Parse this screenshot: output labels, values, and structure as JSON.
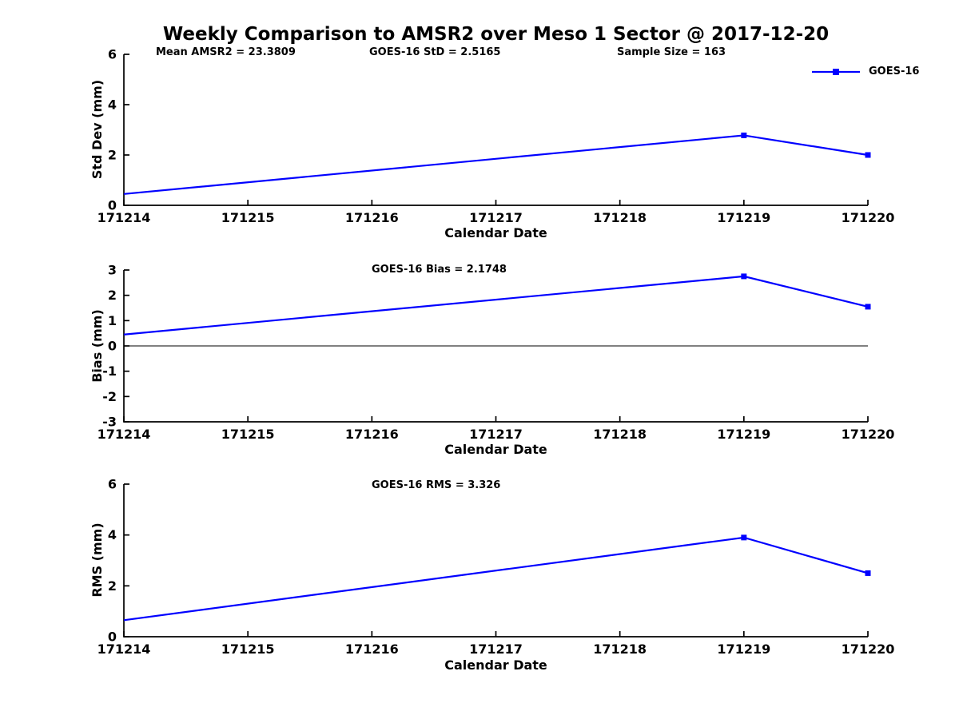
{
  "figure": {
    "title": "Weekly Comparison to AMSR2 over Meso 1 Sector @ 2017-12-20",
    "stats": {
      "mean_amsr2": "Mean AMSR2 = 23.3809",
      "goes16_std": "GOES-16 StD = 2.5165",
      "sample_size": "Sample Size = 163"
    },
    "legend": {
      "label": "GOES-16"
    }
  },
  "colors": {
    "series": "#0000FF",
    "axis": "#000000",
    "text": "#000000",
    "background": "#FFFFFF"
  },
  "chart_data": [
    {
      "type": "line",
      "title": "",
      "xlabel": "Calendar Date",
      "ylabel": "Std Dev (mm)",
      "x_ticks": [
        "171214",
        "171215",
        "171216",
        "171217",
        "171218",
        "171219",
        "171220"
      ],
      "y_ticks": [
        0,
        2,
        4,
        6
      ],
      "ylim": [
        0,
        6
      ],
      "grid": false,
      "zero_line": false,
      "legend_position": "top-right-outside",
      "series": [
        {
          "name": "GOES-16",
          "x": [
            "171214",
            "171219",
            "171220"
          ],
          "y": [
            0.45,
            2.78,
            2.0
          ],
          "markers": [
            false,
            true,
            true
          ]
        }
      ]
    },
    {
      "type": "line",
      "title": "GOES-16 Bias  = 2.1748",
      "xlabel": "Calendar Date",
      "ylabel": "Bias (mm)",
      "x_ticks": [
        "171214",
        "171215",
        "171216",
        "171217",
        "171218",
        "171219",
        "171220"
      ],
      "y_ticks": [
        -3,
        -2,
        -1,
        0,
        1,
        2,
        3
      ],
      "ylim": [
        -3,
        3
      ],
      "grid": false,
      "zero_line": true,
      "series": [
        {
          "name": "GOES-16",
          "x": [
            "171214",
            "171219",
            "171220"
          ],
          "y": [
            0.45,
            2.75,
            1.55
          ],
          "markers": [
            false,
            true,
            true
          ]
        }
      ]
    },
    {
      "type": "line",
      "title": "GOES-16 RMS = 3.326",
      "xlabel": "Calendar Date",
      "ylabel": "RMS (mm)",
      "x_ticks": [
        "171214",
        "171215",
        "171216",
        "171217",
        "171218",
        "171219",
        "171220"
      ],
      "y_ticks": [
        0,
        2,
        4,
        6
      ],
      "ylim": [
        0,
        6
      ],
      "grid": false,
      "zero_line": false,
      "series": [
        {
          "name": "GOES-16",
          "x": [
            "171214",
            "171219",
            "171220"
          ],
          "y": [
            0.65,
            3.9,
            2.5
          ],
          "markers": [
            false,
            true,
            true
          ]
        }
      ]
    }
  ]
}
